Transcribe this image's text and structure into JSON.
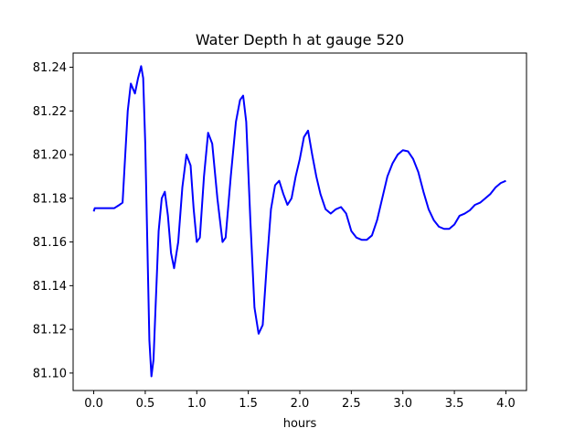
{
  "chart_data": {
    "type": "line",
    "title": "Water Depth h at gauge 520",
    "xlabel": "hours",
    "ylabel": "",
    "xlim": [
      -0.2,
      4.2
    ],
    "ylim": [
      81.092,
      81.2465
    ],
    "x_ticks": [
      0.0,
      0.5,
      1.0,
      1.5,
      2.0,
      2.5,
      3.0,
      3.5,
      4.0
    ],
    "x_tick_labels": [
      "0.0",
      "0.5",
      "1.0",
      "1.5",
      "2.0",
      "2.5",
      "3.0",
      "3.5",
      "4.0"
    ],
    "y_ticks": [
      81.1,
      81.12,
      81.14,
      81.16,
      81.18,
      81.2,
      81.22,
      81.24
    ],
    "y_tick_labels": [
      "81.10",
      "81.12",
      "81.14",
      "81.16",
      "81.18",
      "81.20",
      "81.22",
      "81.24"
    ],
    "grid": false,
    "series": [
      {
        "color": "#0000ff",
        "points": [
          [
            0.0,
            81.174
          ],
          [
            0.01,
            81.1755
          ],
          [
            0.1,
            81.1755
          ],
          [
            0.2,
            81.1755
          ],
          [
            0.25,
            81.177
          ],
          [
            0.28,
            81.178
          ],
          [
            0.3,
            81.195
          ],
          [
            0.33,
            81.22
          ],
          [
            0.36,
            81.2325
          ],
          [
            0.4,
            81.228
          ],
          [
            0.43,
            81.235
          ],
          [
            0.46,
            81.2405
          ],
          [
            0.48,
            81.235
          ],
          [
            0.5,
            81.205
          ],
          [
            0.52,
            81.16
          ],
          [
            0.54,
            81.115
          ],
          [
            0.56,
            81.0985
          ],
          [
            0.58,
            81.106
          ],
          [
            0.6,
            81.13
          ],
          [
            0.63,
            81.165
          ],
          [
            0.66,
            81.18
          ],
          [
            0.69,
            81.183
          ],
          [
            0.72,
            81.172
          ],
          [
            0.75,
            81.155
          ],
          [
            0.78,
            81.148
          ],
          [
            0.82,
            81.16
          ],
          [
            0.86,
            81.185
          ],
          [
            0.9,
            81.2
          ],
          [
            0.94,
            81.195
          ],
          [
            0.97,
            81.175
          ],
          [
            1.0,
            81.16
          ],
          [
            1.03,
            81.162
          ],
          [
            1.07,
            81.19
          ],
          [
            1.11,
            81.21
          ],
          [
            1.15,
            81.205
          ],
          [
            1.2,
            81.18
          ],
          [
            1.25,
            81.16
          ],
          [
            1.28,
            81.162
          ],
          [
            1.33,
            81.19
          ],
          [
            1.38,
            81.215
          ],
          [
            1.42,
            81.225
          ],
          [
            1.45,
            81.227
          ],
          [
            1.48,
            81.215
          ],
          [
            1.52,
            81.17
          ],
          [
            1.56,
            81.13
          ],
          [
            1.6,
            81.118
          ],
          [
            1.64,
            81.122
          ],
          [
            1.68,
            81.15
          ],
          [
            1.72,
            81.175
          ],
          [
            1.76,
            81.186
          ],
          [
            1.8,
            81.188
          ],
          [
            1.84,
            81.182
          ],
          [
            1.88,
            81.177
          ],
          [
            1.92,
            81.18
          ],
          [
            1.96,
            81.19
          ],
          [
            2.0,
            81.198
          ],
          [
            2.04,
            81.208
          ],
          [
            2.08,
            81.211
          ],
          [
            2.12,
            81.2
          ],
          [
            2.16,
            81.19
          ],
          [
            2.2,
            81.182
          ],
          [
            2.25,
            81.175
          ],
          [
            2.3,
            81.173
          ],
          [
            2.35,
            81.175
          ],
          [
            2.4,
            81.176
          ],
          [
            2.45,
            81.173
          ],
          [
            2.5,
            81.165
          ],
          [
            2.55,
            81.162
          ],
          [
            2.6,
            81.161
          ],
          [
            2.65,
            81.161
          ],
          [
            2.7,
            81.163
          ],
          [
            2.75,
            81.17
          ],
          [
            2.8,
            81.18
          ],
          [
            2.85,
            81.19
          ],
          [
            2.9,
            81.196
          ],
          [
            2.95,
            81.2
          ],
          [
            3.0,
            81.202
          ],
          [
            3.05,
            81.2015
          ],
          [
            3.1,
            81.198
          ],
          [
            3.15,
            81.192
          ],
          [
            3.2,
            81.183
          ],
          [
            3.25,
            81.175
          ],
          [
            3.3,
            81.17
          ],
          [
            3.35,
            81.167
          ],
          [
            3.4,
            81.166
          ],
          [
            3.45,
            81.166
          ],
          [
            3.5,
            81.168
          ],
          [
            3.55,
            81.172
          ],
          [
            3.6,
            81.173
          ],
          [
            3.65,
            81.1745
          ],
          [
            3.7,
            81.177
          ],
          [
            3.75,
            81.178
          ],
          [
            3.8,
            81.18
          ],
          [
            3.85,
            81.182
          ],
          [
            3.9,
            81.185
          ],
          [
            3.95,
            81.187
          ],
          [
            4.0,
            81.188
          ]
        ]
      }
    ]
  }
}
